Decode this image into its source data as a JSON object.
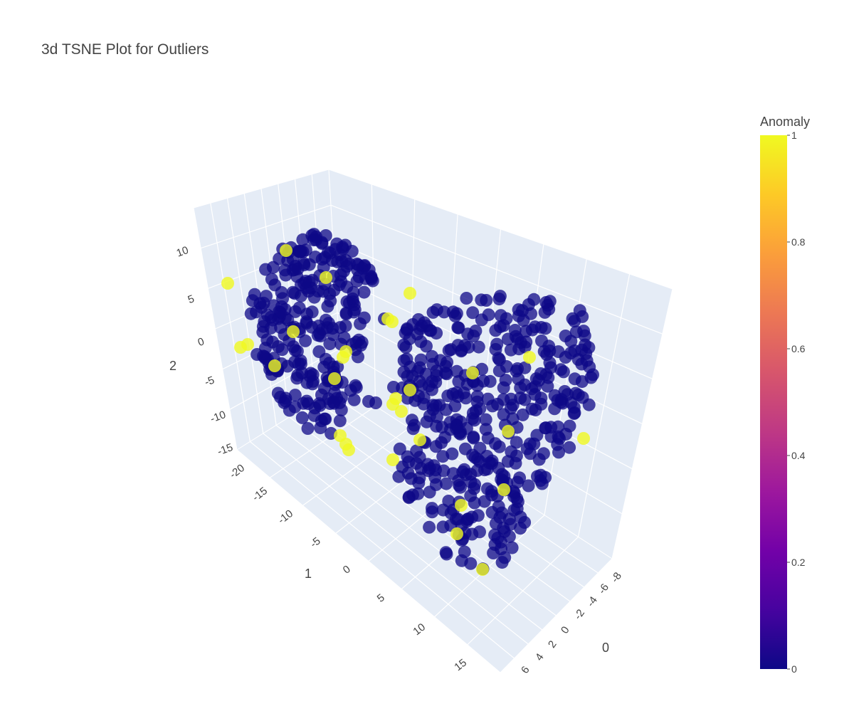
{
  "chart_data": {
    "type": "scatter",
    "title": "3d TSNE Plot for Outliers",
    "axes": {
      "x": {
        "title": "0",
        "ticks": [
          "6",
          "4",
          "2",
          "0",
          "-2",
          "-4",
          "-6",
          "-8"
        ]
      },
      "y": {
        "title": "1",
        "ticks": [
          "-20",
          "-15",
          "-10",
          "-5",
          "0",
          "5",
          "10",
          "15"
        ]
      },
      "z": {
        "title": "2",
        "ticks": [
          "-15",
          "-10",
          "-5",
          "0",
          "5",
          "10"
        ]
      }
    },
    "colorbar": {
      "title": "Anomaly",
      "ticks": [
        "0",
        "0.2",
        "0.4",
        "0.6",
        "0.8",
        "1"
      ],
      "colors": [
        "#0d0887",
        "#46039f",
        "#7201a8",
        "#9c179e",
        "#bd3786",
        "#d8576b",
        "#ed7953",
        "#fb9f3a",
        "#fdca26",
        "#f0f921"
      ]
    },
    "grid": true,
    "legend": "colorbar-right",
    "series": [
      {
        "anomaly": 0,
        "color": "#0d0887"
      },
      {
        "anomaly": 1,
        "color": "#f0f921"
      }
    ]
  }
}
